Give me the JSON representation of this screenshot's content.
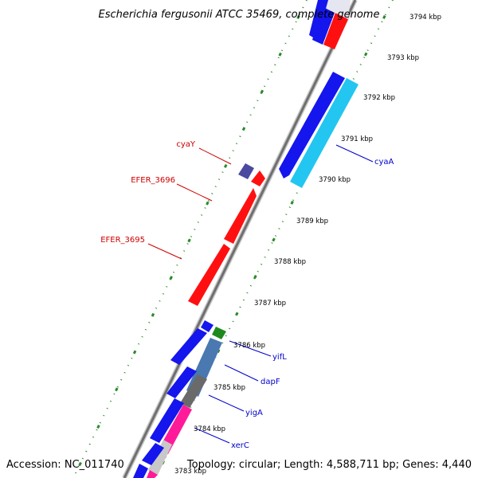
{
  "title": "Escherichia fergusonii ATCC 35469, complete genome",
  "footer": {
    "accession": "Accession: NC_011740",
    "topology": "Topology: circular; Length: 4,588,711 bp; Genes: 4,440"
  },
  "colors": {
    "backbone": "#7a7a7a",
    "tick_ring": "#2a8a2a",
    "reverse_label": "#cc0000",
    "forward_label": "#0000cc"
  },
  "kbp_labels": [
    "3794 kbp",
    "3793 kbp",
    "3792 kbp",
    "3791 kbp",
    "3790 kbp",
    "3789 kbp",
    "3788 kbp",
    "3787 kbp",
    "3786 kbp",
    "3785 kbp",
    "3784 kbp",
    "3783 kbp"
  ],
  "gene_labels": [
    {
      "text": "cyaY",
      "strand": "reverse"
    },
    {
      "text": "EFER_3696",
      "strand": "reverse"
    },
    {
      "text": "EFER_3695",
      "strand": "reverse"
    },
    {
      "text": "cyaA",
      "strand": "forward"
    },
    {
      "text": "yifL",
      "strand": "forward"
    },
    {
      "text": "dapF",
      "strand": "forward"
    },
    {
      "text": "yigA",
      "strand": "forward"
    },
    {
      "text": "xerC",
      "strand": "forward"
    }
  ]
}
